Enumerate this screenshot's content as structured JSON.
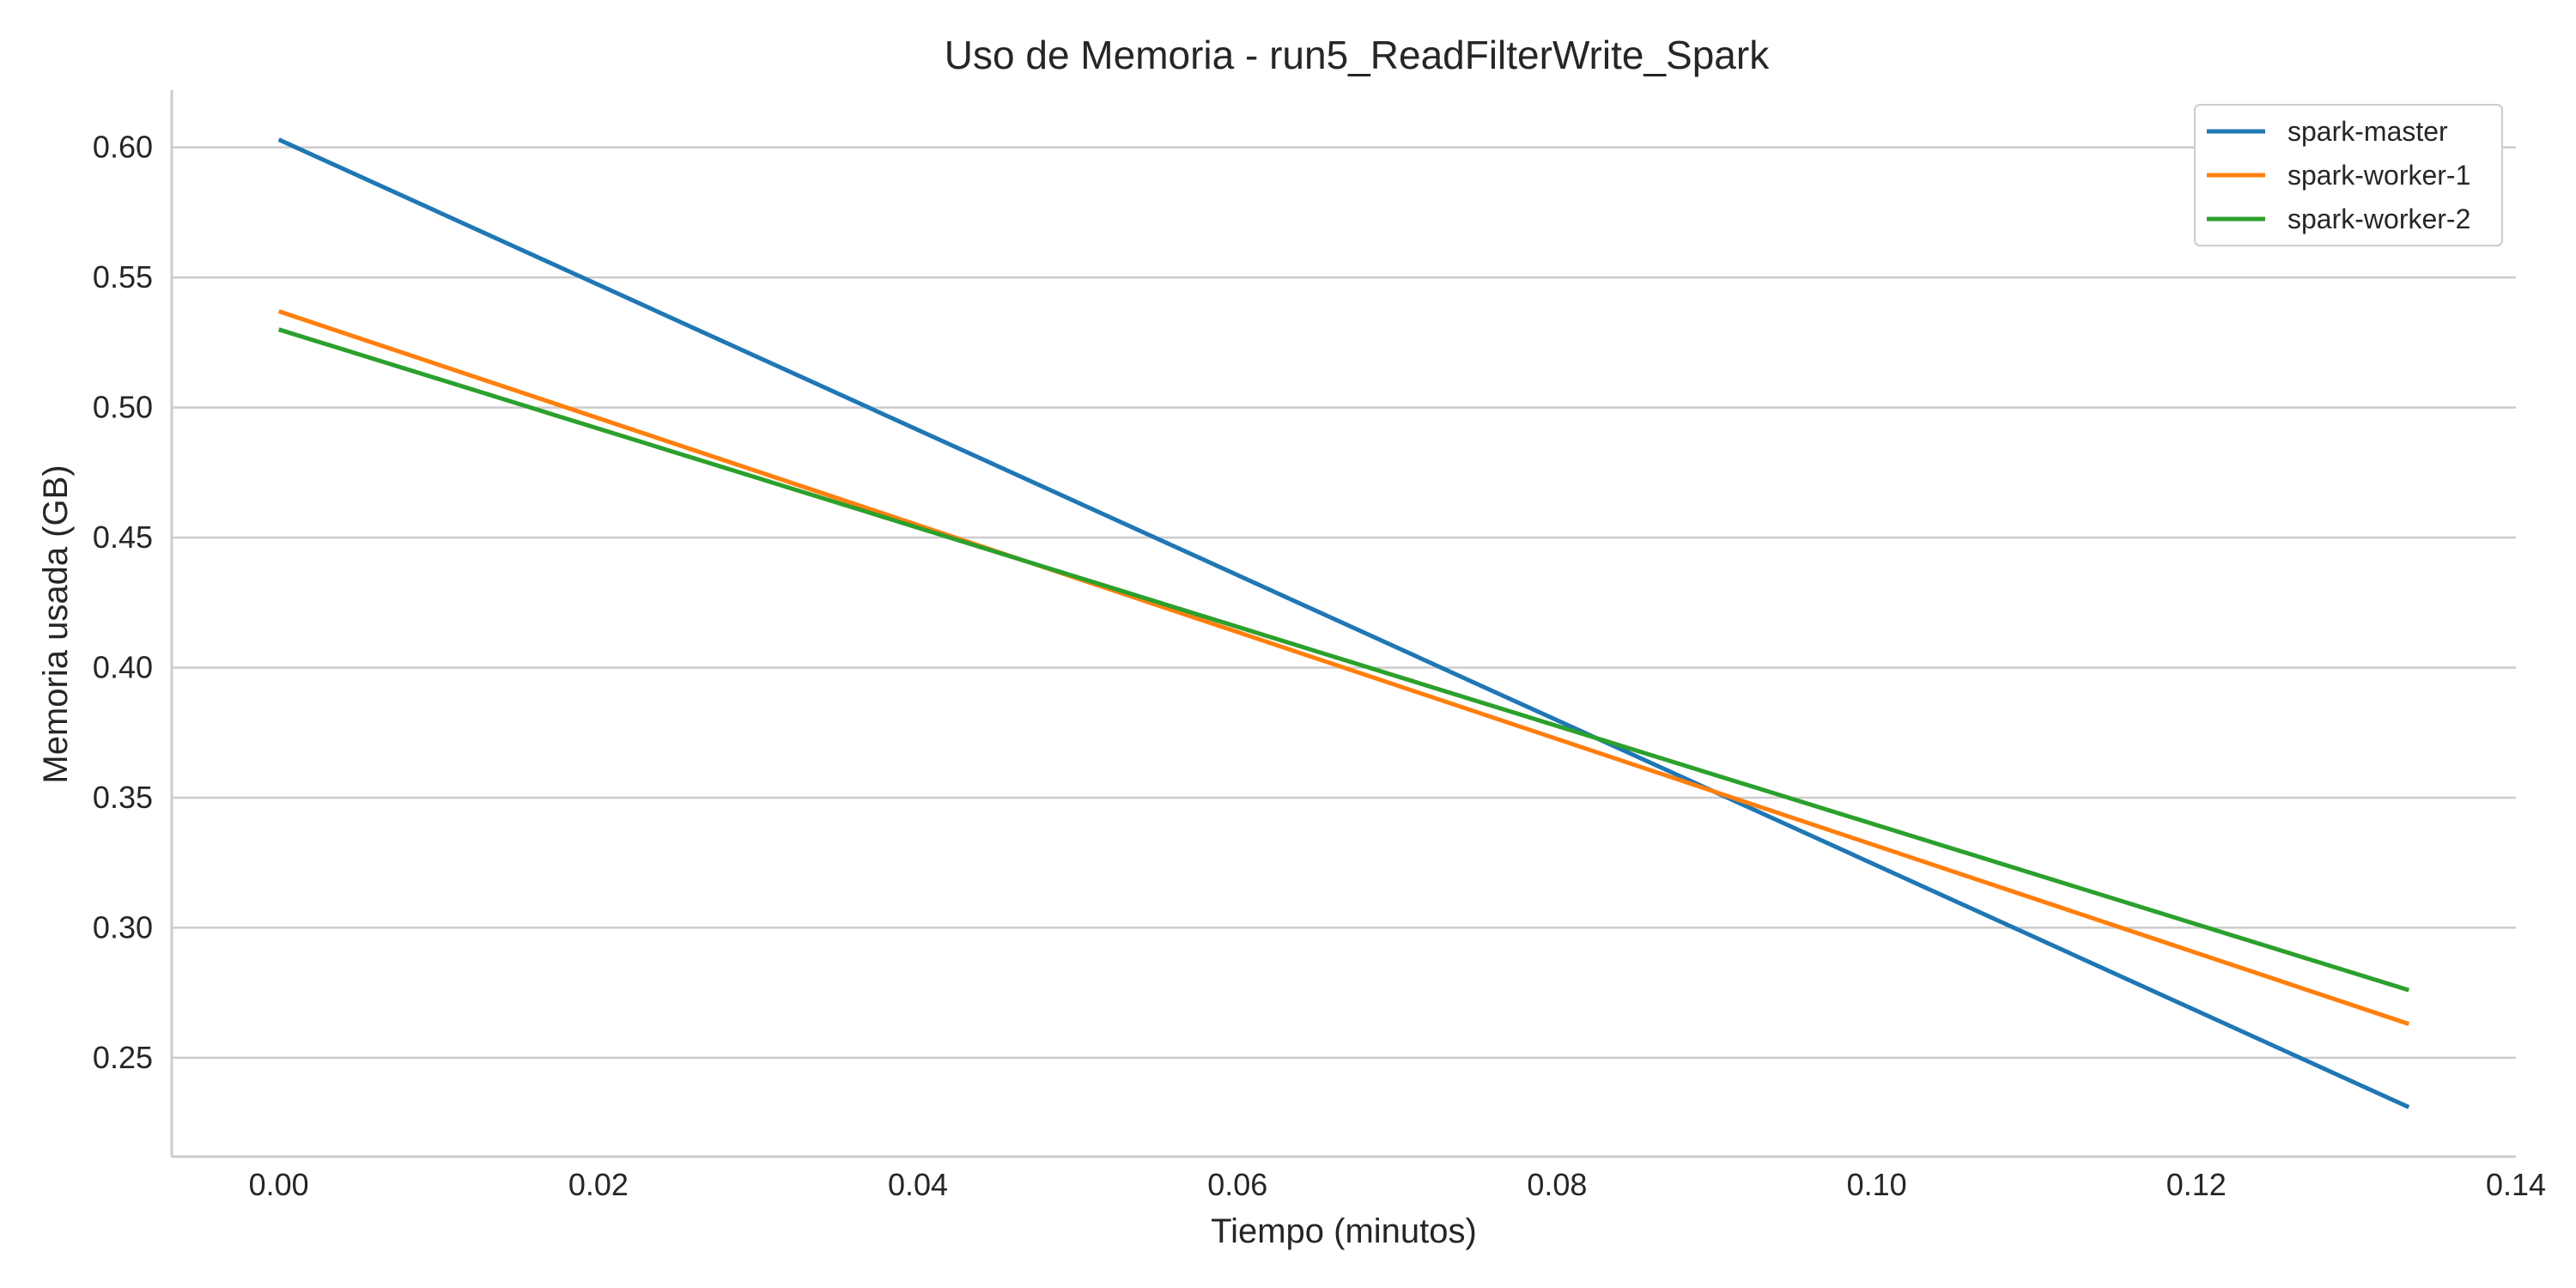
{
  "chart_data": {
    "type": "line",
    "title": "Uso de Memoria - run5_ReadFilterWrite_Spark",
    "xlabel": "Tiempo (minutos)",
    "ylabel": "Memoria usada (GB)",
    "xlim": [
      -0.0067,
      0.14
    ],
    "ylim": [
      0.212,
      0.622
    ],
    "xticks": [
      0.0,
      0.02,
      0.04,
      0.06,
      0.08,
      0.1,
      0.12,
      0.14
    ],
    "xtick_labels": [
      "0.00",
      "0.02",
      "0.04",
      "0.06",
      "0.08",
      "0.10",
      "0.12",
      "0.14"
    ],
    "yticks": [
      0.25,
      0.3,
      0.35,
      0.4,
      0.45,
      0.5,
      0.55,
      0.6
    ],
    "ytick_labels": [
      "0.25",
      "0.30",
      "0.35",
      "0.40",
      "0.45",
      "0.50",
      "0.55",
      "0.60"
    ],
    "grid": "horizontal",
    "legend_position": "top-right",
    "series": [
      {
        "name": "spark-master",
        "color": "#1f77b4",
        "x": [
          0.0,
          0.1333
        ],
        "y": [
          0.603,
          0.231
        ]
      },
      {
        "name": "spark-worker-1",
        "color": "#ff7f0e",
        "x": [
          0.0,
          0.1333
        ],
        "y": [
          0.537,
          0.263
        ]
      },
      {
        "name": "spark-worker-2",
        "color": "#2ca02c",
        "x": [
          0.0,
          0.1333
        ],
        "y": [
          0.53,
          0.276
        ]
      }
    ]
  }
}
